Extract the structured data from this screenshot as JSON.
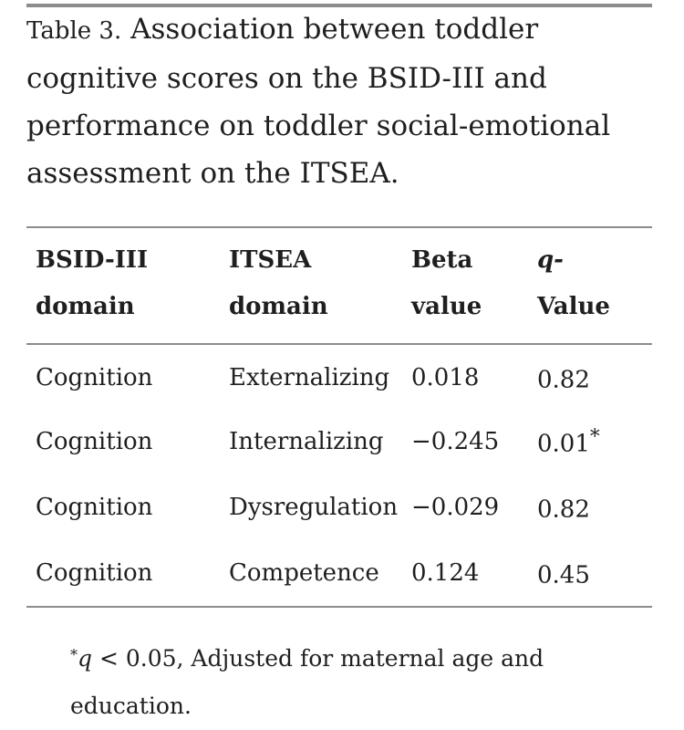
{
  "caption": {
    "label": "Table 3.",
    "text": "Association between toddler cognitive scores on the BSID-III and performance on toddler social-emotional assessment on the ITSEA."
  },
  "table": {
    "headers": [
      {
        "line1": "BSID-III",
        "line2": "domain"
      },
      {
        "line1": "ITSEA",
        "line2": "domain"
      },
      {
        "line1": "Beta",
        "line2": "value"
      },
      {
        "line1": "q-",
        "line2": "Value"
      }
    ],
    "rows": [
      {
        "bsid": "Cognition",
        "itsea": "Externalizing",
        "beta": "0.018",
        "q": "0.82",
        "mark": ""
      },
      {
        "bsid": "Cognition",
        "itsea": "Internalizing",
        "beta": "−0.245",
        "q": "0.01",
        "mark": "*"
      },
      {
        "bsid": "Cognition",
        "itsea": "Dysregulation",
        "beta": "−0.029",
        "q": "0.82",
        "mark": ""
      },
      {
        "bsid": "Cognition",
        "itsea": "Competence",
        "beta": "0.124",
        "q": "0.45",
        "mark": ""
      }
    ]
  },
  "footnote": {
    "mark": "*",
    "variable": "q",
    "text": " < 0.05, Adjusted for maternal age and education."
  }
}
